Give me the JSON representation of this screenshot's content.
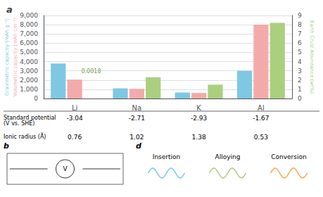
{
  "chart_data": {
    "type": "bar",
    "title": "a",
    "categories": [
      "Li",
      "Na",
      "K",
      "Al"
    ],
    "series": [
      {
        "color": "#7EC8E3",
        "values": [
          3800,
          1100,
          650,
          3000
        ]
      },
      {
        "color": "#F4AAAA",
        "values": [
          2050,
          1050,
          600,
          8000
        ]
      },
      {
        "color": "#AACF7E",
        "values": [
          0.0018,
          2.3,
          1.5,
          8.2
        ],
        "axis": "y2"
      }
    ],
    "ylabel": [
      {
        "text": "Gravimetric capacity (mAh g⁻¹)",
        "color": "#7EC8E3"
      },
      {
        "text": "Volumetric capacity (mAh cm⁻³)",
        "color": "#F4AAAA"
      }
    ],
    "y2label": {
      "text": "Earth Crust Abundance (wt%)",
      "color": "#AACF7E"
    },
    "ylim": [
      0,
      9000
    ],
    "yticks": [
      0,
      1000,
      2000,
      3000,
      4000,
      5000,
      6000,
      7000,
      8000,
      9000
    ],
    "y2lim": [
      0,
      9
    ],
    "y2ticks": [
      0,
      1,
      2,
      3,
      4,
      5,
      6,
      7,
      8,
      9
    ],
    "grid": true,
    "annotations": [
      {
        "text": "0.0018",
        "category": "Li",
        "axis": "y2",
        "color": "#7a9a5a"
      }
    ],
    "table": [
      {
        "label": "Standard potential\n(V vs. SHE)",
        "values": [
          "-3.04",
          "-2.71",
          "-2.93",
          "-1.67"
        ]
      },
      {
        "label": "Ionic radius (Å)",
        "values": [
          "0.76",
          "1.02",
          "1.38",
          "0.53"
        ]
      }
    ],
    "insets": [
      {
        "label": "b",
        "texts": [
          "V"
        ]
      },
      {
        "label": "d",
        "texts": [
          "Insertion",
          "Alloying",
          "Conversion"
        ],
        "colors": [
          "#7EC8E3",
          "#AACF7E",
          "#F4AA55"
        ]
      }
    ]
  }
}
